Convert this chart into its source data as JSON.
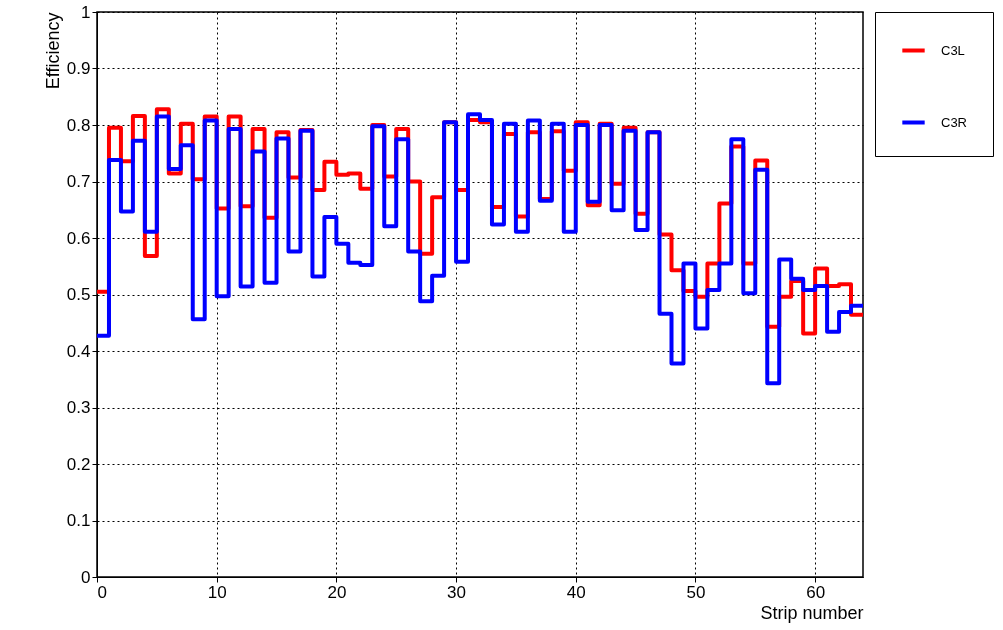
{
  "chart_data": {
    "type": "histogram",
    "xlabel": "Strip number",
    "ylabel": "Efficiency",
    "bins": [
      0,
      1,
      2,
      3,
      4,
      5,
      6,
      7,
      8,
      9,
      10,
      11,
      12,
      13,
      14,
      15,
      16,
      17,
      18,
      19,
      20,
      21,
      22,
      23,
      24,
      25,
      26,
      27,
      28,
      29,
      30,
      31,
      32,
      33,
      34,
      35,
      36,
      37,
      38,
      39,
      40,
      41,
      42,
      43,
      44,
      45,
      46,
      47,
      48,
      49,
      50,
      51,
      52,
      53,
      54,
      55,
      56,
      57,
      58,
      59,
      60,
      61,
      62,
      63,
      64
    ],
    "series": [
      {
        "name": "C3L",
        "color": "#ff0000",
        "values": [
          0.505,
          0.795,
          0.736,
          0.816,
          0.568,
          0.828,
          0.714,
          0.802,
          0.704,
          0.815,
          0.652,
          0.815,
          0.656,
          0.793,
          0.636,
          0.787,
          0.707,
          0.791,
          0.685,
          0.735,
          0.712,
          0.714,
          0.687,
          0.8,
          0.709,
          0.793,
          0.7,
          0.572,
          0.672,
          0.805,
          0.685,
          0.809,
          0.805,
          0.655,
          0.784,
          0.638,
          0.787,
          0.669,
          0.789,
          0.719,
          0.805,
          0.658,
          0.802,
          0.696,
          0.795,
          0.643,
          0.787,
          0.606,
          0.543,
          0.506,
          0.496,
          0.555,
          0.661,
          0.762,
          0.555,
          0.737,
          0.443,
          0.496,
          0.524,
          0.431,
          0.546,
          0.515,
          0.518,
          0.464
        ]
      },
      {
        "name": "C3R",
        "color": "#0000ff",
        "values": [
          0.427,
          0.738,
          0.647,
          0.772,
          0.611,
          0.815,
          0.722,
          0.764,
          0.456,
          0.808,
          0.497,
          0.793,
          0.514,
          0.753,
          0.521,
          0.776,
          0.576,
          0.79,
          0.532,
          0.637,
          0.59,
          0.556,
          0.552,
          0.798,
          0.621,
          0.775,
          0.576,
          0.488,
          0.533,
          0.805,
          0.558,
          0.819,
          0.809,
          0.624,
          0.802,
          0.611,
          0.808,
          0.666,
          0.802,
          0.611,
          0.8,
          0.664,
          0.8,
          0.649,
          0.79,
          0.614,
          0.787,
          0.466,
          0.378,
          0.555,
          0.44,
          0.508,
          0.555,
          0.775,
          0.502,
          0.721,
          0.343,
          0.562,
          0.528,
          0.508,
          0.515,
          0.434,
          0.469,
          0.48
        ]
      }
    ],
    "xlim": [
      0,
      64
    ],
    "xticks": [
      0,
      10,
      20,
      30,
      40,
      50,
      60
    ],
    "ylim": [
      0,
      1
    ],
    "yticks": [
      0,
      0.1,
      0.2,
      0.3,
      0.4,
      0.5,
      0.6,
      0.7,
      0.8,
      0.9,
      1
    ],
    "grid": true,
    "legend": "top right",
    "line_style": "solid",
    "marker": "none"
  }
}
